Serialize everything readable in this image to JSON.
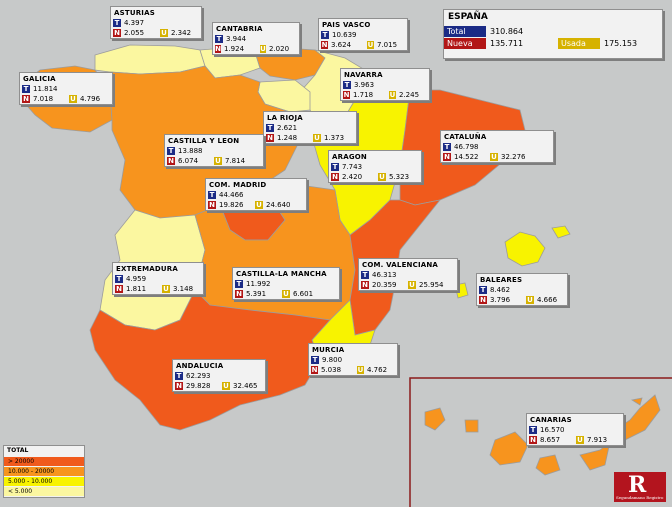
{
  "colors": {
    "gt_20000": "#f05a1c",
    "r10_20": "#f7941e",
    "r5_10": "#f8f300",
    "lt_5000": "#fbf7a0",
    "background": "#c7c9c9"
  },
  "spain": {
    "title": "ESPAÑA",
    "total_label": "Total",
    "total": "310.864",
    "nueva_label": "Nueva",
    "nueva": "135.711",
    "usada_label": "Usada",
    "usada": "175.153"
  },
  "tags": {
    "t": "T",
    "n": "N",
    "u": "U"
  },
  "regions": [
    {
      "name": "ASTURIAS",
      "t": "4.397",
      "n": "2.055",
      "u": "2.342",
      "category": "lt_5000"
    },
    {
      "name": "CANTABRIA",
      "t": "3.944",
      "n": "1.924",
      "u": "2.020",
      "category": "lt_5000"
    },
    {
      "name": "PAIS VASCO",
      "t": "10.639",
      "n": "3.624",
      "u": "7.015",
      "category": "r10_20"
    },
    {
      "name": "NAVARRA",
      "t": "3.963",
      "n": "1.718",
      "u": "2.245",
      "category": "lt_5000"
    },
    {
      "name": "GALICIA",
      "t": "11.814",
      "n": "7.018",
      "u": "4.796",
      "category": "r10_20"
    },
    {
      "name": "LA RIOJA",
      "t": "2.621",
      "n": "1.248",
      "u": "1.373",
      "category": "lt_5000"
    },
    {
      "name": "CATALUÑA",
      "t": "46.798",
      "n": "14.522",
      "u": "32.276",
      "category": "gt_20000"
    },
    {
      "name": "CASTILLA Y LEON",
      "t": "13.888",
      "n": "6.074",
      "u": "7.814",
      "category": "r10_20"
    },
    {
      "name": "ARAGON",
      "t": "7.743",
      "n": "2.420",
      "u": "5.323",
      "category": "r5_10"
    },
    {
      "name": "COM. MADRID",
      "t": "44.466",
      "n": "19.826",
      "u": "24.640",
      "category": "gt_20000"
    },
    {
      "name": "EXTREMADURA",
      "t": "4.959",
      "n": "1.811",
      "u": "3.148",
      "category": "lt_5000"
    },
    {
      "name": "CASTILLA-LA MANCHA",
      "t": "11.992",
      "n": "5.391",
      "u": "6.601",
      "category": "r10_20"
    },
    {
      "name": "COM. VALENCIANA",
      "t": "46.313",
      "n": "20.359",
      "u": "25.954",
      "category": "gt_20000"
    },
    {
      "name": "BALEARES",
      "t": "8.462",
      "n": "3.796",
      "u": "4.666",
      "category": "r5_10"
    },
    {
      "name": "MURCIA",
      "t": "9.800",
      "n": "5.038",
      "u": "4.762",
      "category": "r5_10"
    },
    {
      "name": "ANDALUCIA",
      "t": "62.293",
      "n": "29.828",
      "u": "32.465",
      "category": "gt_20000"
    },
    {
      "name": "CANARIAS",
      "t": "16.570",
      "n": "8.657",
      "u": "7.913",
      "category": "r10_20"
    }
  ],
  "legend": {
    "title": "TOTAL",
    "items": [
      {
        "label": "> 20000",
        "category": "gt_20000"
      },
      {
        "label": "10.000 - 20000",
        "category": "r10_20"
      },
      {
        "label": "5.000 - 10.000",
        "category": "r5_10"
      },
      {
        "label": "< 5.000",
        "category": "lt_5000"
      }
    ]
  },
  "logo": {
    "letter": "R",
    "text": "Segundamano Registro"
  }
}
